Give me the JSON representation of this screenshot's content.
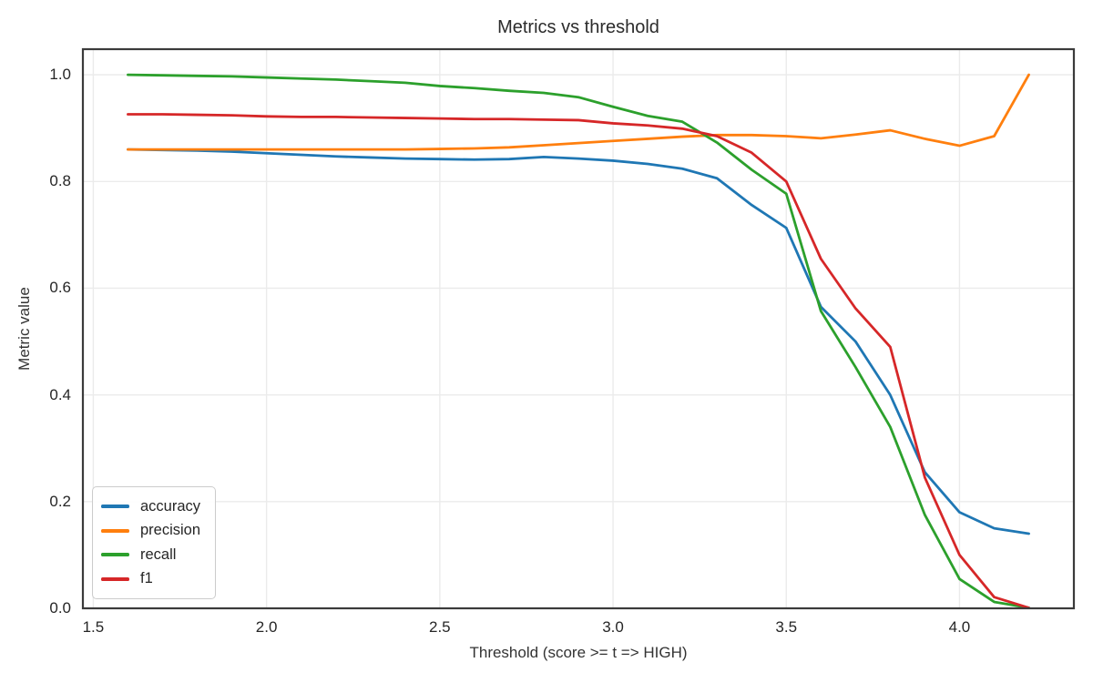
{
  "chart_data": {
    "type": "line",
    "title": "Metrics vs threshold",
    "xlabel": "Threshold (score >= t => HIGH)",
    "ylabel": "Metric value",
    "x": [
      1.6,
      1.7,
      1.8,
      1.9,
      2.0,
      2.1,
      2.2,
      2.3,
      2.4,
      2.5,
      2.6,
      2.7,
      2.8,
      2.9,
      3.0,
      3.1,
      3.2,
      3.3,
      3.4,
      3.5,
      3.6,
      3.7,
      3.8,
      3.9,
      4.0,
      4.1,
      4.2
    ],
    "series": [
      {
        "name": "accuracy",
        "color": "#1f77b4",
        "values": [
          0.86,
          0.859,
          0.858,
          0.856,
          0.853,
          0.85,
          0.847,
          0.845,
          0.843,
          0.842,
          0.841,
          0.842,
          0.846,
          0.843,
          0.839,
          0.833,
          0.824,
          0.806,
          0.756,
          0.713,
          0.565,
          0.5,
          0.4,
          0.255,
          0.18,
          0.15,
          0.14
        ]
      },
      {
        "name": "precision",
        "color": "#ff7f0e",
        "values": [
          0.86,
          0.86,
          0.86,
          0.86,
          0.86,
          0.86,
          0.86,
          0.86,
          0.86,
          0.861,
          0.862,
          0.864,
          0.868,
          0.872,
          0.876,
          0.88,
          0.884,
          0.887,
          0.887,
          0.885,
          0.881,
          0.888,
          0.896,
          0.88,
          0.867,
          0.885,
          1.0
        ]
      },
      {
        "name": "recall",
        "color": "#2ca02c",
        "values": [
          1.0,
          0.999,
          0.998,
          0.997,
          0.995,
          0.993,
          0.991,
          0.988,
          0.985,
          0.979,
          0.975,
          0.97,
          0.966,
          0.958,
          0.94,
          0.923,
          0.912,
          0.873,
          0.822,
          0.777,
          0.557,
          0.452,
          0.34,
          0.175,
          0.055,
          0.012,
          0.001
        ]
      },
      {
        "name": "f1",
        "color": "#d62728",
        "values": [
          0.926,
          0.926,
          0.925,
          0.924,
          0.922,
          0.921,
          0.921,
          0.92,
          0.919,
          0.918,
          0.917,
          0.917,
          0.916,
          0.915,
          0.909,
          0.905,
          0.899,
          0.885,
          0.854,
          0.8,
          0.655,
          0.562,
          0.49,
          0.245,
          0.1,
          0.021,
          0.001
        ]
      }
    ],
    "xlim": [
      1.47,
      4.33
    ],
    "ylim": [
      0,
      1.048
    ],
    "xticks": [
      1.5,
      2.0,
      2.5,
      3.0,
      3.5,
      4.0
    ],
    "xtick_labels": [
      "1.5",
      "2.0",
      "2.5",
      "3.0",
      "3.5",
      "4.0"
    ],
    "yticks": [
      0.0,
      0.2,
      0.4,
      0.6,
      0.8,
      1.0
    ],
    "ytick_labels": [
      "0.0",
      "0.2",
      "0.4",
      "0.6",
      "0.8",
      "1.0"
    ],
    "grid": true,
    "legend_position": "lower left",
    "legend_entries": [
      "accuracy",
      "precision",
      "recall",
      "f1"
    ]
  },
  "styles": {
    "grid_color": "#ebebeb",
    "spine_color": "#3b3b3b",
    "text_color": "#262626",
    "background": "#ffffff"
  }
}
